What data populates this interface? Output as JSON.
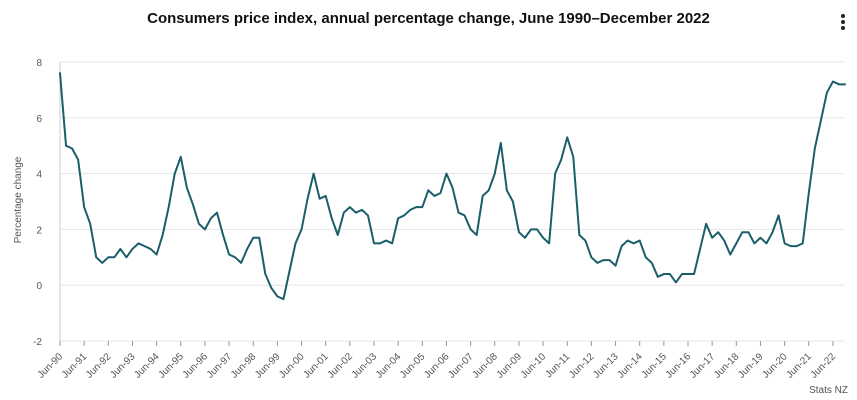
{
  "chart_data": {
    "type": "line",
    "title": "Consumers price index, annual percentage change, June 1990–December 2022",
    "ylabel": "Percentage change",
    "xlabel": "",
    "source": "Stats NZ",
    "ylim": [
      -2,
      8
    ],
    "yticks": [
      -2,
      0,
      2,
      4,
      6,
      8
    ],
    "grid": true,
    "line_color": "#1b5e6b",
    "x": [
      "Jun-90",
      "Sep-90",
      "Dec-90",
      "Mar-91",
      "Jun-91",
      "Sep-91",
      "Dec-91",
      "Mar-92",
      "Jun-92",
      "Sep-92",
      "Dec-92",
      "Mar-93",
      "Jun-93",
      "Sep-93",
      "Dec-93",
      "Mar-94",
      "Jun-94",
      "Sep-94",
      "Dec-94",
      "Mar-95",
      "Jun-95",
      "Sep-95",
      "Dec-95",
      "Mar-96",
      "Jun-96",
      "Sep-96",
      "Dec-96",
      "Mar-97",
      "Jun-97",
      "Sep-97",
      "Dec-97",
      "Mar-98",
      "Jun-98",
      "Sep-98",
      "Dec-98",
      "Mar-99",
      "Jun-99",
      "Sep-99",
      "Dec-99",
      "Mar-00",
      "Jun-00",
      "Sep-00",
      "Dec-00",
      "Mar-01",
      "Jun-01",
      "Sep-01",
      "Dec-01",
      "Mar-02",
      "Jun-02",
      "Sep-02",
      "Dec-02",
      "Mar-03",
      "Jun-03",
      "Sep-03",
      "Dec-03",
      "Mar-04",
      "Jun-04",
      "Sep-04",
      "Dec-04",
      "Mar-05",
      "Jun-05",
      "Sep-05",
      "Dec-05",
      "Mar-06",
      "Jun-06",
      "Sep-06",
      "Dec-06",
      "Mar-07",
      "Jun-07",
      "Sep-07",
      "Dec-07",
      "Mar-08",
      "Jun-08",
      "Sep-08",
      "Dec-08",
      "Mar-09",
      "Jun-09",
      "Sep-09",
      "Dec-09",
      "Mar-10",
      "Jun-10",
      "Sep-10",
      "Dec-10",
      "Mar-11",
      "Jun-11",
      "Sep-11",
      "Dec-11",
      "Mar-12",
      "Jun-12",
      "Sep-12",
      "Dec-12",
      "Mar-13",
      "Jun-13",
      "Sep-13",
      "Dec-13",
      "Mar-14",
      "Jun-14",
      "Sep-14",
      "Dec-14",
      "Mar-15",
      "Jun-15",
      "Sep-15",
      "Dec-15",
      "Mar-16",
      "Jun-16",
      "Sep-16",
      "Dec-16",
      "Mar-17",
      "Jun-17",
      "Sep-17",
      "Dec-17",
      "Mar-18",
      "Jun-18",
      "Sep-18",
      "Dec-18",
      "Mar-19",
      "Jun-19",
      "Sep-19",
      "Dec-19",
      "Mar-20",
      "Jun-20",
      "Sep-20",
      "Dec-20",
      "Mar-21",
      "Jun-21",
      "Sep-21",
      "Dec-21",
      "Mar-22",
      "Jun-22",
      "Sep-22",
      "Dec-22"
    ],
    "x_tick_labels": [
      "Jun-90",
      "Jun-91",
      "Jun-92",
      "Jun-93",
      "Jun-94",
      "Jun-95",
      "Jun-96",
      "Jun-97",
      "Jun-98",
      "Jun-99",
      "Jun-00",
      "Jun-01",
      "Jun-02",
      "Jun-03",
      "Jun-04",
      "Jun-05",
      "Jun-06",
      "Jun-07",
      "Jun-08",
      "Jun-09",
      "Jun-10",
      "Jun-11",
      "Jun-12",
      "Jun-13",
      "Jun-14",
      "Jun-15",
      "Jun-16",
      "Jun-17",
      "Jun-18",
      "Jun-19",
      "Jun-20",
      "Jun-21",
      "Jun-22"
    ],
    "values": [
      7.6,
      5.0,
      4.9,
      4.5,
      2.8,
      2.2,
      1.0,
      0.8,
      1.0,
      1.0,
      1.3,
      1.0,
      1.3,
      1.5,
      1.4,
      1.3,
      1.1,
      1.8,
      2.8,
      4.0,
      4.6,
      3.5,
      2.9,
      2.2,
      2.0,
      2.4,
      2.6,
      1.8,
      1.1,
      1.0,
      0.8,
      1.3,
      1.7,
      1.7,
      0.4,
      -0.1,
      -0.4,
      -0.5,
      0.5,
      1.5,
      2.0,
      3.1,
      4.0,
      3.1,
      3.2,
      2.4,
      1.8,
      2.6,
      2.8,
      2.6,
      2.7,
      2.5,
      1.5,
      1.5,
      1.6,
      1.5,
      2.4,
      2.5,
      2.7,
      2.8,
      2.8,
      3.4,
      3.2,
      3.3,
      4.0,
      3.5,
      2.6,
      2.5,
      2.0,
      1.8,
      3.2,
      3.4,
      4.0,
      5.1,
      3.4,
      3.0,
      1.9,
      1.7,
      2.0,
      2.0,
      1.7,
      1.5,
      4.0,
      4.5,
      5.3,
      4.6,
      1.8,
      1.6,
      1.0,
      0.8,
      0.9,
      0.9,
      0.7,
      1.4,
      1.6,
      1.5,
      1.6,
      1.0,
      0.8,
      0.3,
      0.4,
      0.4,
      0.1,
      0.4,
      0.4,
      0.4,
      1.3,
      2.2,
      1.7,
      1.9,
      1.6,
      1.1,
      1.5,
      1.9,
      1.9,
      1.5,
      1.7,
      1.5,
      1.9,
      2.5,
      1.5,
      1.4,
      1.4,
      1.5,
      3.3,
      4.9,
      5.9,
      6.9,
      7.3,
      7.2,
      7.2
    ]
  }
}
